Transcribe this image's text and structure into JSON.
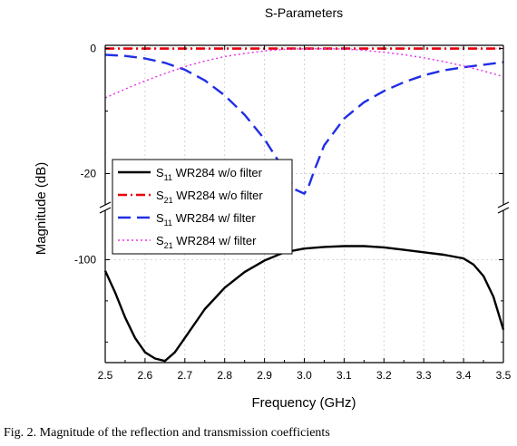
{
  "chart_data": {
    "type": "line",
    "title": "S-Parameters",
    "xlabel": "Frequency (GHz)",
    "ylabel": "Magnitude (dB)",
    "xlim": [
      2.5,
      3.5
    ],
    "x_ticks": [
      "2.5",
      "2.6",
      "2.7",
      "2.8",
      "2.9",
      "3.0",
      "3.1",
      "3.2",
      "3.3",
      "3.4",
      "3.5"
    ],
    "y_axis_break": true,
    "upper_panel": {
      "ylim": [
        -25,
        0.5
      ],
      "y_ticks": [
        "0",
        "-20"
      ]
    },
    "lower_panel": {
      "ylim": [
        -125,
        -88
      ],
      "y_ticks": [
        "-100"
      ]
    },
    "grid": true,
    "legend_position": "left",
    "series": [
      {
        "name": "S11 WR284 w/o filter",
        "legend_main": "S",
        "legend_sub": "11",
        "legend_rest": " WR284 w/o filter",
        "color": "#000000",
        "style": "solid",
        "panel": "lower",
        "x": [
          2.5,
          2.525,
          2.55,
          2.575,
          2.6,
          2.625,
          2.65,
          2.675,
          2.7,
          2.75,
          2.8,
          2.85,
          2.9,
          2.95,
          3.0,
          3.05,
          3.1,
          3.15,
          3.2,
          3.25,
          3.3,
          3.35,
          3.4,
          3.425,
          3.45,
          3.475,
          3.5
        ],
        "y": [
          -102.7,
          -108,
          -114,
          -119,
          -122.5,
          -124,
          -124.6,
          -122.5,
          -119,
          -112,
          -106.8,
          -103,
          -100.2,
          -98.2,
          -97.3,
          -96.9,
          -96.7,
          -96.7,
          -97,
          -97.6,
          -98.2,
          -98.8,
          -99.7,
          -101.2,
          -104,
          -109,
          -117
        ]
      },
      {
        "name": "S21 WR284 w/o filter",
        "legend_main": "S",
        "legend_sub": "21",
        "legend_rest": " WR284 w/o filter",
        "color": "#e8000b",
        "style": "dashdot",
        "panel": "upper",
        "x": [
          2.5,
          2.75,
          3.0,
          3.25,
          3.5
        ],
        "y": [
          -0.02,
          -0.02,
          -0.02,
          -0.02,
          -0.02
        ]
      },
      {
        "name": "S11 WR284 w/ filter",
        "legend_main": "S",
        "legend_sub": "11",
        "legend_rest": " WR284 w/ filter",
        "color": "#1f2ee6",
        "style": "dashed",
        "panel": "upper",
        "x": [
          2.5,
          2.55,
          2.6,
          2.65,
          2.7,
          2.75,
          2.8,
          2.85,
          2.9,
          2.95,
          2.975,
          3.0,
          3.01,
          3.025,
          3.05,
          3.1,
          3.15,
          3.2,
          3.25,
          3.3,
          3.35,
          3.4,
          3.45,
          3.5
        ],
        "y": [
          -1.0,
          -1.2,
          -1.6,
          -2.3,
          -3.4,
          -5.1,
          -7.5,
          -10.6,
          -14.5,
          -19.5,
          -22.5,
          -23.2,
          -22.2,
          -19.5,
          -15.5,
          -11.2,
          -8.6,
          -6.8,
          -5.4,
          -4.3,
          -3.5,
          -3.0,
          -2.6,
          -2.2
        ]
      },
      {
        "name": "S21 WR284 w/ filter",
        "legend_main": "S",
        "legend_sub": "21",
        "legend_rest": " WR284 w/ filter",
        "color": "#e62ee6",
        "style": "dotted",
        "panel": "upper",
        "x": [
          2.5,
          2.55,
          2.6,
          2.65,
          2.7,
          2.75,
          2.8,
          2.85,
          2.9,
          2.95,
          3.0,
          3.05,
          3.1,
          3.15,
          3.2,
          3.25,
          3.3,
          3.35,
          3.4,
          3.45,
          3.5
        ],
        "y": [
          -7.9,
          -6.5,
          -5.2,
          -4.0,
          -2.9,
          -2.0,
          -1.3,
          -0.8,
          -0.4,
          -0.15,
          -0.05,
          -0.03,
          -0.1,
          -0.3,
          -0.6,
          -1.0,
          -1.5,
          -2.1,
          -2.8,
          -3.6,
          -4.5
        ]
      }
    ]
  },
  "caption": "Fig. 2.  Magnitude of the reflection and transmission coefficients"
}
